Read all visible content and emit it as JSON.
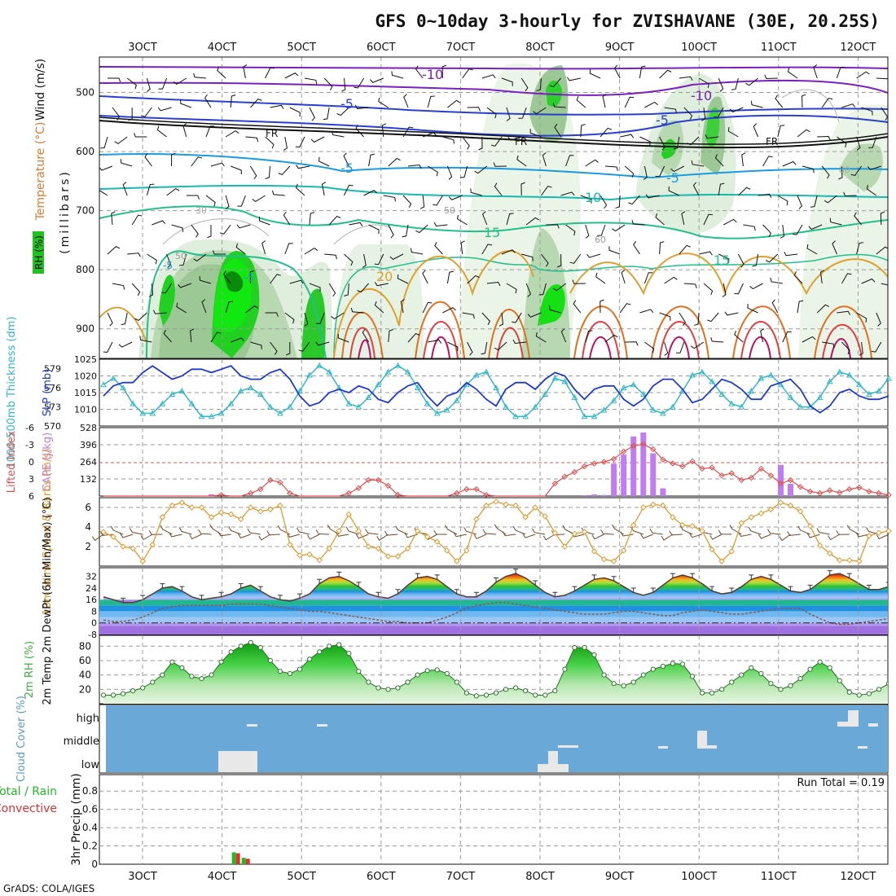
{
  "title": "GFS 0~10day 3-hourly for ZVISHAVANE (30E, 20.25S)",
  "footer": "GrADS: COLA/IGES",
  "x_ticks": [
    "3OCT",
    "4OCT",
    "5OCT",
    "6OCT",
    "7OCT",
    "8OCT",
    "9OCT",
    "10OCT",
    "11OCT",
    "12OCT"
  ],
  "colors": {
    "temp_lines": [
      "#7a1fc0",
      "#2a3fd0",
      "#1a9be0",
      "#19b8b0",
      "#22c08a",
      "#e0a030",
      "#e07020",
      "#e04040",
      "#c01060"
    ],
    "slp": "#1f3ad0",
    "thickness": "#30b8c8",
    "lifted_index": "#e05050",
    "cape": "#c07cf0",
    "wind_speed": "#e09a30",
    "rh": "#3cb03c",
    "cloud_bg": "#6aa8d8",
    "cloud_bar": "#e8e8e8",
    "precip_total": "#22bb22",
    "precip_conv": "#e03030"
  },
  "chart_data": [
    {
      "panel": "upper_air",
      "type": "contour",
      "ylabels": [
        "Wind (m/s)",
        "Temperature (°C)",
        "RH (%)"
      ],
      "ylabel_axis": "(millibars)",
      "yticks": [
        "500",
        "600",
        "700",
        "800",
        "900"
      ],
      "ylim": [
        440,
        950
      ],
      "contour_labels": [
        "-10",
        "-10",
        "-5",
        "-5",
        "-5",
        "-5",
        "FR",
        "FR",
        "FR",
        "-5",
        "-5",
        "10",
        "15",
        "15",
        "20",
        "30",
        "30",
        "50",
        "50",
        "60"
      ]
    },
    {
      "panel": "slp_thickness",
      "type": "line",
      "ylabel_left": "1000-500mb Thickness (dm)",
      "ylabel_right": "SLP (mb)",
      "yticks_left": [
        "579",
        "576",
        "573",
        "570"
      ],
      "yticks_right": [
        "1025",
        "1020",
        "1015",
        "1010"
      ],
      "ylim_right": [
        1005,
        1025
      ],
      "ylim_left": [
        570,
        580.5
      ],
      "x": [
        0,
        1,
        2,
        3,
        4,
        5,
        6,
        7,
        8,
        9,
        10,
        11,
        12,
        13,
        14,
        15,
        16,
        17,
        18,
        19,
        20,
        21,
        22,
        23,
        24,
        25,
        26,
        27,
        28,
        29,
        30,
        31,
        32,
        33,
        34,
        35,
        36,
        37,
        38,
        39,
        40,
        41,
        42,
        43,
        44,
        45,
        46,
        47,
        48,
        49,
        50,
        51,
        52,
        53,
        54,
        55,
        56,
        57,
        58,
        59,
        60,
        61,
        62,
        63,
        64,
        65,
        66,
        67,
        68,
        69,
        70,
        71,
        72,
        73,
        74,
        75,
        76,
        77,
        78,
        79,
        80
      ],
      "series": [
        {
          "name": "SLP",
          "values": [
            1014,
            1017,
            1018,
            1018,
            1021,
            1023,
            1021,
            1019,
            1020,
            1022,
            1022,
            1021,
            1022,
            1023,
            1020,
            1019,
            1019,
            1021,
            1022,
            1019,
            1014,
            1011,
            1012,
            1015,
            1016,
            1015,
            1017,
            1016,
            1013,
            1012,
            1015,
            1017,
            1018,
            1014,
            1011,
            1014,
            1015,
            1018,
            1016,
            1013,
            1011,
            1016,
            1018,
            1018,
            1016,
            1019,
            1021,
            1020,
            1016,
            1013,
            1016,
            1017,
            1017,
            1013,
            1011,
            1013,
            1017,
            1019,
            1019,
            1016,
            1012,
            1013,
            1016,
            1019,
            1018,
            1016,
            1013,
            1013,
            1017,
            1018,
            1019,
            1016,
            1011,
            1009,
            1011,
            1015,
            1016,
            1014,
            1013,
            1013,
            1014
          ]
        },
        {
          "name": "Thickness",
          "values": [
            576.5,
            577.5,
            576.0,
            573.5,
            572.0,
            572.0,
            573.5,
            575.0,
            575.5,
            573.5,
            571.5,
            571.5,
            572.0,
            573.5,
            575.5,
            576.0,
            575.0,
            573.0,
            572.0,
            573.0,
            575.5,
            578.0,
            579.5,
            578.5,
            576.0,
            573.5,
            573.0,
            574.5,
            576.5,
            578.5,
            579.5,
            578.5,
            576.0,
            573.5,
            572.0,
            572.5,
            574.0,
            576.5,
            578.0,
            578.5,
            576.0,
            573.0,
            571.5,
            571.5,
            573.0,
            575.0,
            577.5,
            577.0,
            574.5,
            571.5,
            571.5,
            572.5,
            574.0,
            576.0,
            576.5,
            575.0,
            572.5,
            572.0,
            573.0,
            575.5,
            578.0,
            578.5,
            577.0,
            575.0,
            573.5,
            573.0,
            575.5,
            577.5,
            578.0,
            576.5,
            574.5,
            573.0,
            573.0,
            574.5,
            577.0,
            578.5,
            578.0,
            576.5,
            575.0,
            575.5,
            577.5
          ]
        }
      ]
    },
    {
      "panel": "lifted_index_cape",
      "type": "bar+line",
      "ylabel_left": "Lifted Index",
      "ylabel_right": "CAPE (J/kg)",
      "yticks_left": [
        "-6",
        "-3",
        "0",
        "3",
        "6"
      ],
      "yticks_right": [
        "528",
        "396",
        "264",
        "132"
      ],
      "li_lim": [
        -6,
        6
      ],
      "cape_lim": [
        0,
        528
      ],
      "lifted_index": [
        6,
        6,
        6,
        6,
        6,
        6,
        6,
        6,
        6,
        6,
        6,
        6,
        5.8,
        6,
        6,
        5.5,
        4.8,
        3.2,
        3.6,
        5.5,
        6,
        6,
        6,
        6,
        6,
        5.5,
        4.6,
        3.2,
        3.2,
        4.2,
        5.8,
        6,
        6,
        6,
        6,
        6,
        5.5,
        4.8,
        4.8,
        5.8,
        6,
        6,
        6,
        6,
        6,
        6,
        3.8,
        2.6,
        1.8,
        0.8,
        0.3,
        0,
        -0.5,
        -1.8,
        -2.8,
        -3.1,
        -2.2,
        -0.4,
        0.3,
        0.8,
        -0.1,
        1.2,
        1.0,
        2.4,
        2.0,
        3.2,
        2.8,
        1.2,
        2.4,
        3.8,
        3.2,
        4.4,
        5.2,
        5.5,
        5.0,
        5.4,
        4.8,
        4.5,
        5.2,
        5.5,
        5.8
      ],
      "cape": [
        0,
        0,
        0,
        0,
        0,
        0,
        0,
        0,
        0,
        0,
        0,
        14,
        0,
        0,
        0,
        0,
        0,
        0,
        0,
        0,
        0,
        0,
        0,
        0,
        0,
        0,
        0,
        0,
        0,
        0,
        0,
        0,
        0,
        0,
        0,
        0,
        0,
        0,
        0,
        0,
        0,
        0,
        0,
        0,
        0,
        0,
        0,
        0,
        0,
        6,
        12,
        8,
        250,
        320,
        460,
        490,
        330,
        60,
        0,
        0,
        0,
        0,
        0,
        0,
        0,
        0,
        0,
        0,
        0,
        240,
        95,
        0,
        0,
        0,
        0,
        0,
        0,
        0,
        0,
        0,
        0
      ]
    },
    {
      "panel": "wind10m",
      "type": "line",
      "ylabel": "10m Wind Speed & Barbs (m/s)",
      "yticks": [
        "6",
        "4",
        "2"
      ],
      "ylim": [
        0,
        7
      ],
      "values": [
        3.5,
        3.0,
        2.0,
        1.8,
        0.5,
        2.2,
        5.0,
        6.2,
        6.5,
        6.0,
        6.0,
        5.0,
        5.5,
        5.3,
        4.8,
        6.0,
        5.6,
        5.8,
        6.2,
        2.2,
        1.1,
        1.2,
        0.6,
        1.8,
        3.6,
        5.3,
        3.6,
        2.0,
        1.8,
        1.0,
        1.0,
        1.8,
        3.6,
        3.0,
        2.5,
        1.6,
        0.5,
        1.6,
        4.8,
        6.2,
        6.6,
        6.3,
        6.2,
        5.0,
        6.0,
        5.1,
        3.4,
        2.0,
        3.3,
        3.5,
        1.5,
        0.7,
        0.5,
        1.6,
        4.2,
        6.0,
        6.3,
        6.2,
        5.0,
        4.2,
        4.1,
        3.6,
        1.7,
        0.5,
        1.5,
        4.4,
        5.0,
        5.4,
        5.8,
        6.5,
        6.2,
        5.6,
        4.1,
        2.1,
        1.3,
        0.6,
        0.6,
        0.5,
        3.1,
        3.4,
        3.6
      ]
    },
    {
      "panel": "temp2m",
      "type": "area+line",
      "ylabel": "2m Temp 2m DewPt (6hr Min/Max) (°C)",
      "yticks": [
        "32",
        "24",
        "16",
        "8",
        "0",
        "-8"
      ],
      "ylim": [
        -8,
        38
      ],
      "temp": [
        18,
        16,
        14,
        14,
        16,
        20,
        24,
        25,
        22,
        18,
        16,
        17,
        18,
        20,
        24,
        26,
        22,
        18,
        16,
        15,
        17,
        20,
        27,
        31,
        32,
        29,
        25,
        20,
        18,
        17,
        20,
        26,
        31,
        32,
        30,
        25,
        20,
        18,
        18,
        22,
        28,
        32,
        34,
        31,
        26,
        21,
        18,
        19,
        22,
        26,
        30,
        31,
        29,
        25,
        21,
        19,
        21,
        26,
        31,
        33,
        31,
        27,
        22,
        20,
        21,
        25,
        30,
        32,
        30,
        26,
        22,
        21,
        23,
        28,
        33,
        34,
        31,
        27,
        23,
        23,
        25
      ],
      "dewpt": [
        2,
        1,
        1,
        2,
        4,
        7,
        10,
        11,
        12,
        12,
        12,
        12,
        12,
        13,
        13,
        13,
        13,
        12,
        11,
        10,
        9,
        8,
        8,
        7,
        6,
        5,
        4,
        3,
        2,
        1,
        1,
        0,
        0,
        0,
        2,
        4,
        7,
        10,
        12,
        13,
        14,
        14,
        13,
        12,
        11,
        10,
        9,
        8,
        7,
        6,
        6,
        6,
        7,
        8,
        8,
        7,
        6,
        5,
        5,
        7,
        8,
        9,
        8,
        7,
        6,
        6,
        7,
        8,
        9,
        10,
        10,
        10,
        6,
        3,
        0,
        -1,
        -1,
        0,
        1,
        2,
        3
      ]
    },
    {
      "panel": "rh2m",
      "type": "area",
      "ylabel": "2m RH (%)",
      "yticks": [
        "80",
        "60",
        "40",
        "20"
      ],
      "ylim": [
        0,
        95
      ],
      "values": [
        12,
        12,
        14,
        18,
        22,
        30,
        40,
        58,
        50,
        38,
        35,
        40,
        58,
        72,
        80,
        85,
        78,
        60,
        45,
        42,
        48,
        62,
        72,
        80,
        82,
        70,
        45,
        30,
        22,
        20,
        22,
        30,
        40,
        46,
        47,
        42,
        30,
        15,
        11,
        12,
        15,
        20,
        22,
        18,
        12,
        12,
        18,
        48,
        78,
        78,
        68,
        40,
        28,
        25,
        30,
        40,
        48,
        52,
        56,
        55,
        38,
        15,
        15,
        20,
        30,
        40,
        50,
        42,
        28,
        20,
        25,
        35,
        48,
        58,
        50,
        32,
        16,
        12,
        14,
        20,
        28
      ]
    },
    {
      "panel": "cloud_cover",
      "type": "bar",
      "ylabel": "Cloud Cover (%)",
      "categories": [
        "high",
        "middle",
        "low"
      ]
    },
    {
      "panel": "precip3hr",
      "type": "bar",
      "ylabel": "3hr Precip (mm)",
      "legend": [
        "Total / Rain",
        "Convective"
      ],
      "annotation": "Run Total = 0.19",
      "yticks": [
        "0.8",
        "0.6",
        "0.4",
        "0.2",
        "0"
      ],
      "ylim": [
        0,
        0.98
      ],
      "bars": [
        {
          "x": 13.5,
          "total": 0.13,
          "convective": 0.12
        },
        {
          "x": 14.5,
          "total": 0.07,
          "convective": 0.06
        }
      ]
    }
  ]
}
